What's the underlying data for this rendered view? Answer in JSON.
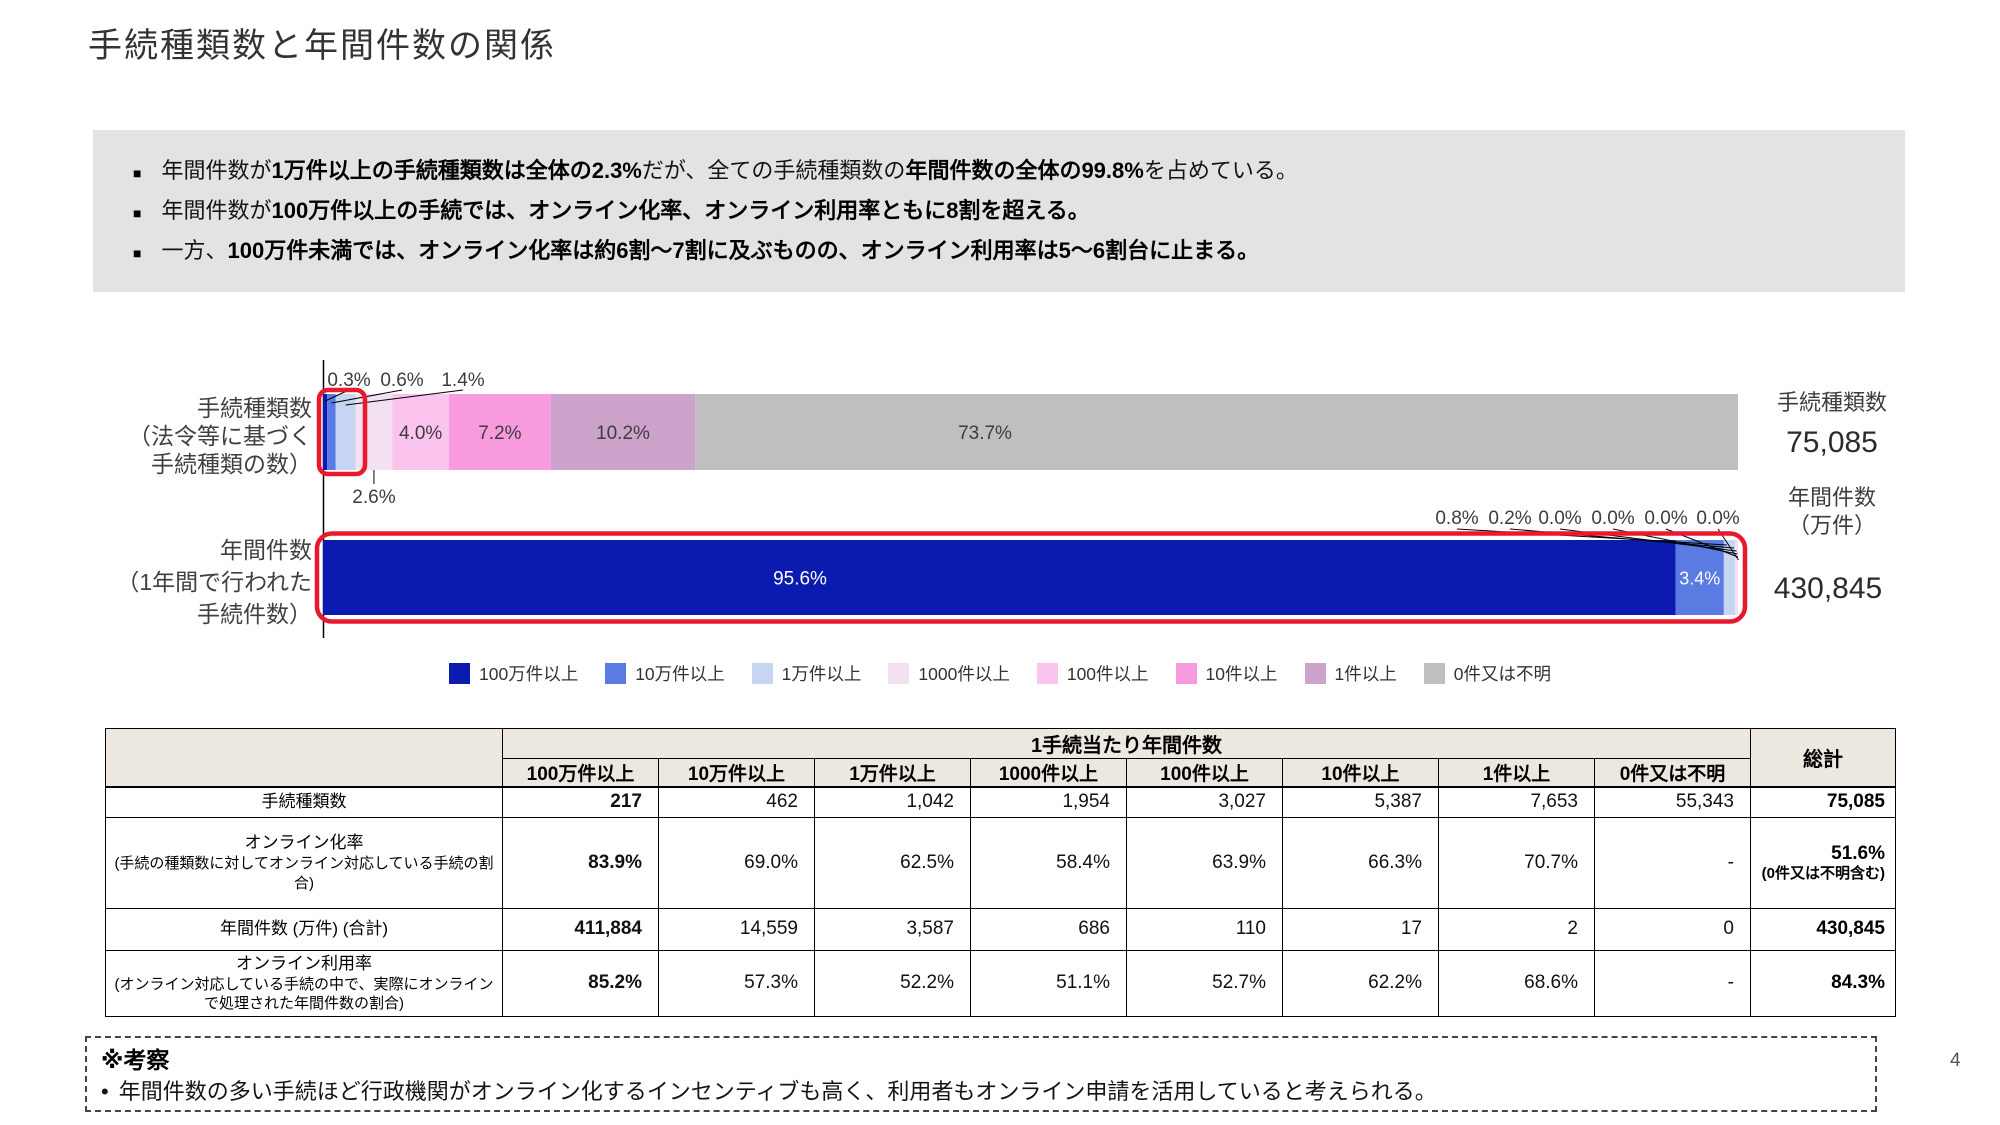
{
  "title": "手続種類数と年間件数の関係",
  "page_number": "4",
  "summary_box": {
    "bullets": [
      {
        "marker": "■",
        "segments": [
          {
            "text": "年間件数が",
            "bold": false
          },
          {
            "text": "1万件以上の手続種類数は全体の2.3%",
            "bold": true
          },
          {
            "text": "だが、全ての手続種類数の",
            "bold": false
          },
          {
            "text": "年間件数の全体の99.8%",
            "bold": true
          },
          {
            "text": "を占めている。",
            "bold": false
          }
        ]
      },
      {
        "marker": "■",
        "segments": [
          {
            "text": "年間件数が",
            "bold": false
          },
          {
            "text": "100万件以上の手続では、オンライン化率、オンライン利用率ともに8割を超える。",
            "bold": true
          }
        ]
      },
      {
        "marker": "■",
        "segments": [
          {
            "text": "一方、",
            "bold": false
          },
          {
            "text": "100万件未満では、オンライン化率は約6割～7割に及ぶものの、オンライン利用率は5～6割台に止まる。",
            "bold": true
          }
        ]
      }
    ]
  },
  "chart_data": {
    "type": "bar",
    "subtype": "horizontal-stacked",
    "unit": "percent",
    "legend": [
      "100万件以上",
      "10万件以上",
      "1万件以上",
      "1000件以上",
      "100件以上",
      "10件以上",
      "1件以上",
      "0件又は不明"
    ],
    "colors": [
      "#0b1aaf",
      "#5a7ce2",
      "#c6d5f2",
      "#f3e0f1",
      "#fac4ee",
      "#f79ade",
      "#cda3cc",
      "#bfbfbf"
    ],
    "bars": [
      {
        "name": "手続種類数",
        "axis_label_lines": [
          "手続種類数",
          "（法令等に基づく",
          "手続種類の数）"
        ],
        "values_pct": [
          0.3,
          0.6,
          1.4,
          2.6,
          4.0,
          7.2,
          10.2,
          73.7
        ],
        "segment_labels": [
          "0.3%",
          "0.6%",
          "1.4%",
          "2.6%",
          "4.0%",
          "7.2%",
          "10.2%",
          "73.7%"
        ],
        "total": {
          "label_lines": [
            "手続種類数"
          ],
          "value": "75,085"
        }
      },
      {
        "name": "年間件数",
        "axis_label_lines": [
          "年間件数",
          "（1年間で行われた",
          "手続件数）"
        ],
        "values_pct": [
          95.6,
          3.4,
          0.8,
          0.2,
          0.0,
          0.0,
          0.0,
          0.0
        ],
        "segment_labels": [
          "95.6%",
          "3.4%",
          "0.8%",
          "0.2%",
          "0.0%",
          "0.0%",
          "0.0%",
          "0.0%"
        ],
        "total": {
          "label_lines": [
            "年間件数",
            "（万件）"
          ],
          "value": "430,845"
        }
      }
    ]
  },
  "table": {
    "group_header": "1手続当たり年間件数",
    "total_header": "総計",
    "columns": [
      "100万件以上",
      "10万件以上",
      "1万件以上",
      "1000件以上",
      "100件以上",
      "10件以上",
      "1件以上",
      "0件又は不明"
    ],
    "rows": [
      {
        "label": "手続種類数",
        "sublabel": "",
        "cells": [
          "217",
          "462",
          "1,042",
          "1,954",
          "3,027",
          "5,387",
          "7,653",
          "55,343"
        ],
        "total": "75,085",
        "total_sub": "",
        "first_cell_style": "bold"
      },
      {
        "label": "オンライン化率",
        "sublabel": "(手続の種類数に対してオンライン対応している手続の割合)",
        "cells": [
          "83.9%",
          "69.0%",
          "62.5%",
          "58.4%",
          "63.9%",
          "66.3%",
          "70.7%",
          "-"
        ],
        "total": "51.6%",
        "total_sub": "(0件又は不明含む)",
        "first_cell_style": "red"
      },
      {
        "label": "年間件数 (万件) (合計)",
        "sublabel": "",
        "cells": [
          "411,884",
          "14,559",
          "3,587",
          "686",
          "110",
          "17",
          "2",
          "0"
        ],
        "total": "430,845",
        "total_sub": "",
        "first_cell_style": "bold"
      },
      {
        "label": "オンライン利用率",
        "sublabel": "(オンライン対応している手続の中で、実際にオンラインで処理された年間件数の割合)",
        "cells": [
          "85.2%",
          "57.3%",
          "52.2%",
          "51.1%",
          "52.7%",
          "62.2%",
          "68.6%",
          "-"
        ],
        "total": "84.3%",
        "total_sub": "",
        "first_cell_style": "red"
      }
    ]
  },
  "notes": {
    "title": "※考察",
    "bullet_marker": "•",
    "bullet_text": "年間件数の多い手続ほど行政機関がオンライン化するインセンティブも高く、利用者もオンライン申請を活用していると考えられる。"
  }
}
